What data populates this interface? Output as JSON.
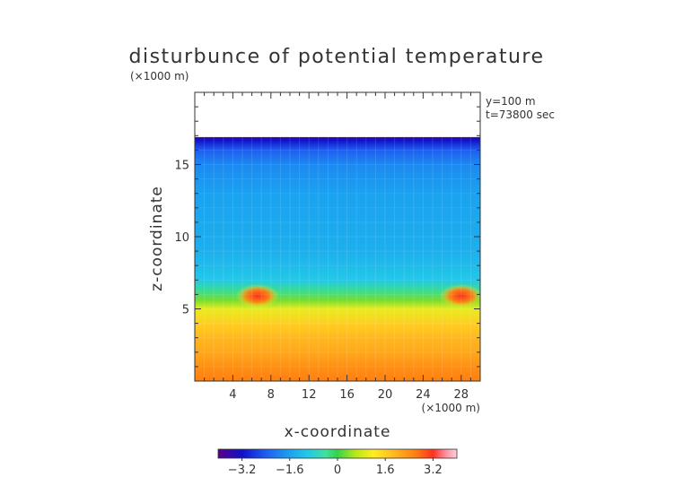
{
  "chart_data": {
    "type": "heatmap",
    "title": "disturbunce of potential temperature",
    "xlabel": "x-coordinate",
    "ylabel": "z-coordinate",
    "x_unit": "(×1000 m)",
    "y_unit": "(×1000 m)",
    "annotations": [
      "y=100 m",
      "t=73800 sec"
    ],
    "xlim": [
      0,
      30
    ],
    "ylim": [
      0,
      20
    ],
    "x_ticks": [
      4,
      8,
      12,
      16,
      20,
      24,
      28
    ],
    "y_ticks": [
      5,
      10,
      15
    ],
    "colorbar": {
      "ticks": [
        -3.2,
        -1.6,
        0,
        1.6,
        3.2
      ],
      "tick_labels": [
        "−3.2",
        "−1.6",
        "0",
        "1.6",
        "3.2"
      ],
      "range": [
        -4.0,
        4.0
      ],
      "stops": [
        {
          "v": -4.0,
          "c": "#5a0089"
        },
        {
          "v": -3.2,
          "c": "#1010c8"
        },
        {
          "v": -2.4,
          "c": "#1e5ef0"
        },
        {
          "v": -1.6,
          "c": "#1aa2f0"
        },
        {
          "v": -1.0,
          "c": "#22c8e8"
        },
        {
          "v": -0.4,
          "c": "#40e0a0"
        },
        {
          "v": 0.0,
          "c": "#36d24a"
        },
        {
          "v": 0.6,
          "c": "#b8e818"
        },
        {
          "v": 1.2,
          "c": "#ffee22"
        },
        {
          "v": 1.9,
          "c": "#ffb820"
        },
        {
          "v": 2.6,
          "c": "#ff8010"
        },
        {
          "v": 3.2,
          "c": "#ff3020"
        },
        {
          "v": 3.6,
          "c": "#ff8a9a"
        },
        {
          "v": 4.0,
          "c": "#ffd0dc"
        }
      ]
    },
    "profile": [
      {
        "z": 0.0,
        "v": 2.6
      },
      {
        "z": 1.0,
        "v": 2.4
      },
      {
        "z": 2.0,
        "v": 2.1
      },
      {
        "z": 3.0,
        "v": 1.9
      },
      {
        "z": 4.0,
        "v": 1.6
      },
      {
        "z": 5.0,
        "v": 1.0
      },
      {
        "z": 5.6,
        "v": 0.3
      },
      {
        "z": 6.2,
        "v": -0.3
      },
      {
        "z": 7.0,
        "v": -1.0
      },
      {
        "z": 9.0,
        "v": -1.4
      },
      {
        "z": 13.0,
        "v": -1.6
      },
      {
        "z": 15.0,
        "v": -1.9
      },
      {
        "z": 16.0,
        "v": -2.4
      },
      {
        "z": 16.7,
        "v": -3.2
      },
      {
        "z": 16.9,
        "v": -3.7
      }
    ],
    "top_boundary_z": 16.9,
    "warm_blobs": [
      {
        "x": 6.6,
        "z": 5.9,
        "value": 3.0
      },
      {
        "x": 28.0,
        "z": 5.9,
        "value": 3.0
      }
    ]
  }
}
